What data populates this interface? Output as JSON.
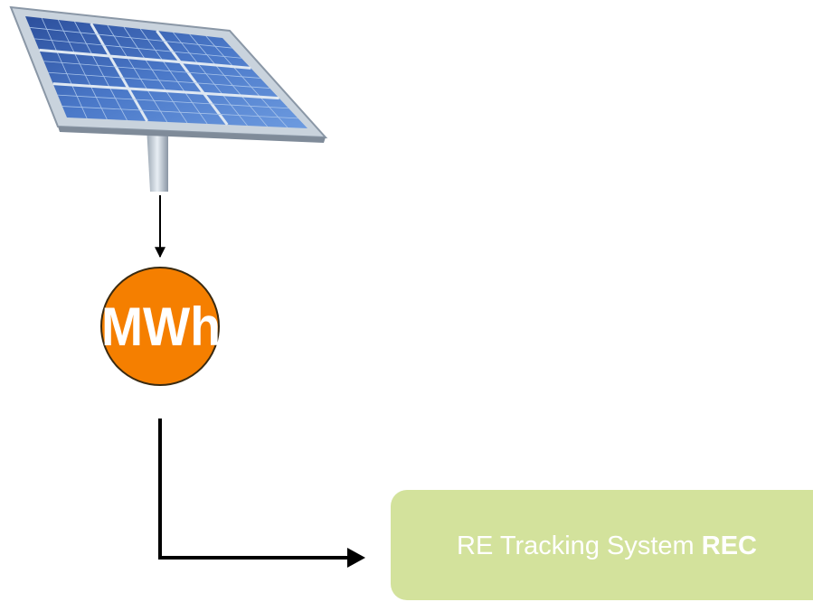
{
  "nodes": [
    {
      "label": "MWh"
    },
    {
      "label": "RE Tracking System",
      "label_bold": "REC"
    }
  ]
}
